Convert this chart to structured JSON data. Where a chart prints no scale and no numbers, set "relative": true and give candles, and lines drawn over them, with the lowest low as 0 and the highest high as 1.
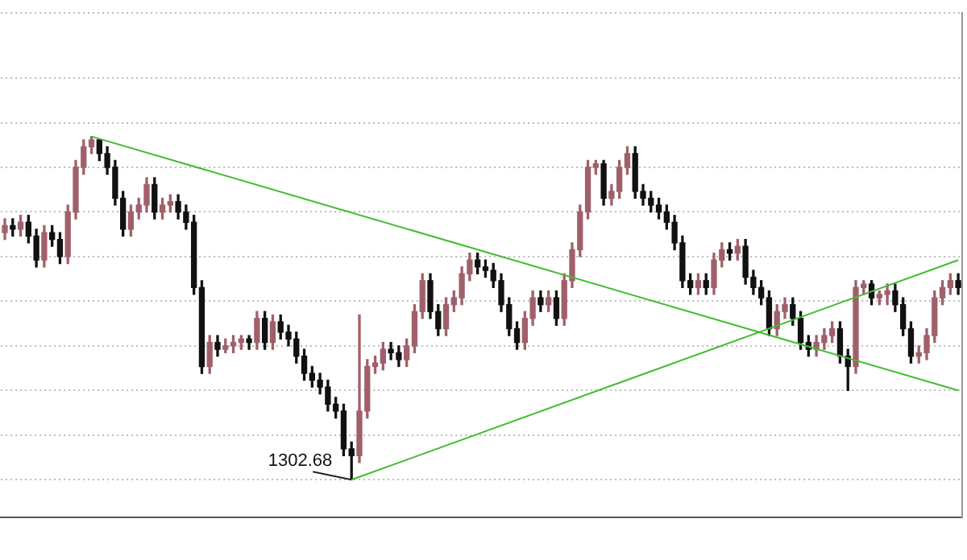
{
  "chart_data": {
    "type": "candlestick",
    "relative": true,
    "grid": "y",
    "legend": false,
    "categories": [
      null,
      null,
      null,
      null,
      null,
      null,
      null,
      null,
      null,
      null,
      null,
      null,
      null,
      null,
      null,
      null,
      null,
      null,
      null,
      null,
      null,
      null,
      null,
      null,
      null,
      null,
      null,
      null,
      null,
      null,
      null,
      null,
      null,
      null,
      null,
      null,
      null,
      null,
      null,
      null,
      null,
      null,
      null,
      null,
      null,
      null,
      null,
      null,
      null,
      null,
      null,
      null,
      null,
      null,
      null,
      null,
      null,
      null,
      null,
      null,
      null,
      null,
      null,
      null,
      null,
      null,
      null,
      null,
      null,
      null,
      null,
      null,
      null,
      null,
      null,
      null,
      null,
      null,
      null,
      null,
      null,
      null,
      null,
      null,
      null,
      null,
      null,
      null,
      null,
      null,
      null,
      null,
      null,
      null,
      null,
      null,
      null,
      null,
      null,
      null,
      null,
      null,
      null,
      null,
      null,
      null,
      null,
      null,
      null,
      null,
      null,
      null,
      null,
      null,
      null,
      null,
      null,
      null,
      null,
      null,
      null,
      null
    ],
    "ohlc": [
      [
        0.72,
        0.76,
        0.7,
        0.74
      ],
      [
        0.74,
        0.76,
        0.71,
        0.73
      ],
      [
        0.73,
        0.77,
        0.71,
        0.75
      ],
      [
        0.75,
        0.77,
        0.69,
        0.71
      ],
      [
        0.71,
        0.73,
        0.62,
        0.64
      ],
      [
        0.64,
        0.74,
        0.62,
        0.72
      ],
      [
        0.72,
        0.74,
        0.68,
        0.7
      ],
      [
        0.7,
        0.72,
        0.63,
        0.65
      ],
      [
        0.65,
        0.8,
        0.63,
        0.78
      ],
      [
        0.78,
        0.93,
        0.76,
        0.91
      ],
      [
        0.91,
        0.99,
        0.89,
        0.97
      ],
      [
        0.97,
        1.0,
        0.95,
        0.99
      ],
      [
        0.99,
        0.99,
        0.93,
        0.95
      ],
      [
        0.95,
        0.97,
        0.89,
        0.91
      ],
      [
        0.91,
        0.93,
        0.8,
        0.82
      ],
      [
        0.82,
        0.84,
        0.71,
        0.73
      ],
      [
        0.73,
        0.8,
        0.71,
        0.78
      ],
      [
        0.78,
        0.82,
        0.76,
        0.8
      ],
      [
        0.8,
        0.88,
        0.78,
        0.86
      ],
      [
        0.86,
        0.88,
        0.76,
        0.78
      ],
      [
        0.78,
        0.82,
        0.76,
        0.8
      ],
      [
        0.8,
        0.83,
        0.78,
        0.81
      ],
      [
        0.81,
        0.83,
        0.76,
        0.78
      ],
      [
        0.78,
        0.8,
        0.73,
        0.75
      ],
      [
        0.75,
        0.77,
        0.54,
        0.56
      ],
      [
        0.56,
        0.58,
        0.31,
        0.33
      ],
      [
        0.33,
        0.42,
        0.31,
        0.4
      ],
      [
        0.4,
        0.42,
        0.36,
        0.38
      ],
      [
        0.38,
        0.41,
        0.37,
        0.39
      ],
      [
        0.39,
        0.42,
        0.37,
        0.4
      ],
      [
        0.4,
        0.42,
        0.38,
        0.41
      ],
      [
        0.41,
        0.42,
        0.38,
        0.4
      ],
      [
        0.4,
        0.49,
        0.38,
        0.47
      ],
      [
        0.47,
        0.49,
        0.38,
        0.4
      ],
      [
        0.4,
        0.48,
        0.38,
        0.46
      ],
      [
        0.46,
        0.48,
        0.41,
        0.43
      ],
      [
        0.43,
        0.45,
        0.39,
        0.41
      ],
      [
        0.41,
        0.43,
        0.34,
        0.36
      ],
      [
        0.36,
        0.38,
        0.29,
        0.31
      ],
      [
        0.31,
        0.33,
        0.27,
        0.29
      ],
      [
        0.29,
        0.31,
        0.25,
        0.27
      ],
      [
        0.27,
        0.29,
        0.2,
        0.22
      ],
      [
        0.22,
        0.24,
        0.18,
        0.2
      ],
      [
        0.2,
        0.22,
        0.07,
        0.09
      ],
      [
        0.09,
        0.11,
        0.0,
        0.07
      ],
      [
        0.07,
        0.48,
        0.05,
        0.2
      ],
      [
        0.2,
        0.35,
        0.18,
        0.33
      ],
      [
        0.33,
        0.36,
        0.31,
        0.34
      ],
      [
        0.34,
        0.4,
        0.32,
        0.38
      ],
      [
        0.38,
        0.4,
        0.35,
        0.37
      ],
      [
        0.37,
        0.39,
        0.33,
        0.35
      ],
      [
        0.35,
        0.41,
        0.33,
        0.39
      ],
      [
        0.39,
        0.51,
        0.37,
        0.49
      ],
      [
        0.49,
        0.6,
        0.47,
        0.58
      ],
      [
        0.58,
        0.6,
        0.47,
        0.49
      ],
      [
        0.49,
        0.51,
        0.42,
        0.44
      ],
      [
        0.44,
        0.53,
        0.42,
        0.51
      ],
      [
        0.51,
        0.55,
        0.49,
        0.53
      ],
      [
        0.53,
        0.62,
        0.51,
        0.6
      ],
      [
        0.6,
        0.66,
        0.58,
        0.64
      ],
      [
        0.64,
        0.66,
        0.6,
        0.62
      ],
      [
        0.62,
        0.64,
        0.59,
        0.61
      ],
      [
        0.61,
        0.63,
        0.56,
        0.58
      ],
      [
        0.58,
        0.6,
        0.49,
        0.51
      ],
      [
        0.51,
        0.53,
        0.42,
        0.44
      ],
      [
        0.44,
        0.46,
        0.38,
        0.4
      ],
      [
        0.4,
        0.49,
        0.38,
        0.47
      ],
      [
        0.47,
        0.55,
        0.45,
        0.53
      ],
      [
        0.53,
        0.55,
        0.49,
        0.51
      ],
      [
        0.51,
        0.55,
        0.49,
        0.53
      ],
      [
        0.53,
        0.55,
        0.45,
        0.47
      ],
      [
        0.47,
        0.6,
        0.45,
        0.58
      ],
      [
        0.58,
        0.69,
        0.56,
        0.67
      ],
      [
        0.67,
        0.8,
        0.65,
        0.78
      ],
      [
        0.78,
        0.93,
        0.76,
        0.91
      ],
      [
        0.91,
        0.93,
        0.89,
        0.92
      ],
      [
        0.92,
        0.93,
        0.8,
        0.82
      ],
      [
        0.82,
        0.86,
        0.8,
        0.84
      ],
      [
        0.84,
        0.93,
        0.82,
        0.91
      ],
      [
        0.91,
        0.97,
        0.89,
        0.95
      ],
      [
        0.95,
        0.97,
        0.82,
        0.84
      ],
      [
        0.84,
        0.86,
        0.8,
        0.82
      ],
      [
        0.82,
        0.84,
        0.78,
        0.8
      ],
      [
        0.8,
        0.82,
        0.76,
        0.78
      ],
      [
        0.78,
        0.8,
        0.73,
        0.75
      ],
      [
        0.75,
        0.77,
        0.67,
        0.69
      ],
      [
        0.69,
        0.71,
        0.56,
        0.58
      ],
      [
        0.58,
        0.6,
        0.54,
        0.56
      ],
      [
        0.56,
        0.6,
        0.54,
        0.58
      ],
      [
        0.58,
        0.6,
        0.54,
        0.56
      ],
      [
        0.56,
        0.66,
        0.54,
        0.64
      ],
      [
        0.64,
        0.69,
        0.62,
        0.67
      ],
      [
        0.67,
        0.69,
        0.64,
        0.66
      ],
      [
        0.66,
        0.7,
        0.64,
        0.68
      ],
      [
        0.68,
        0.7,
        0.57,
        0.59
      ],
      [
        0.59,
        0.61,
        0.54,
        0.56
      ],
      [
        0.56,
        0.58,
        0.51,
        0.53
      ],
      [
        0.53,
        0.55,
        0.42,
        0.44
      ],
      [
        0.44,
        0.51,
        0.42,
        0.49
      ],
      [
        0.49,
        0.53,
        0.47,
        0.51
      ],
      [
        0.51,
        0.53,
        0.45,
        0.47
      ],
      [
        0.47,
        0.49,
        0.38,
        0.4
      ],
      [
        0.4,
        0.42,
        0.36,
        0.38
      ],
      [
        0.38,
        0.42,
        0.36,
        0.4
      ],
      [
        0.4,
        0.44,
        0.38,
        0.42
      ],
      [
        0.42,
        0.46,
        0.4,
        0.44
      ],
      [
        0.44,
        0.46,
        0.34,
        0.36
      ],
      [
        0.36,
        0.38,
        0.26,
        0.33
      ],
      [
        0.33,
        0.58,
        0.31,
        0.56
      ],
      [
        0.56,
        0.58,
        0.54,
        0.57
      ],
      [
        0.57,
        0.58,
        0.51,
        0.53
      ],
      [
        0.53,
        0.55,
        0.51,
        0.54
      ],
      [
        0.54,
        0.57,
        0.51,
        0.55
      ],
      [
        0.55,
        0.57,
        0.49,
        0.51
      ],
      [
        0.51,
        0.53,
        0.42,
        0.44
      ],
      [
        0.44,
        0.46,
        0.34,
        0.36
      ],
      [
        0.36,
        0.39,
        0.34,
        0.37
      ],
      [
        0.37,
        0.44,
        0.35,
        0.42
      ],
      [
        0.42,
        0.55,
        0.4,
        0.53
      ],
      [
        0.53,
        0.58,
        0.51,
        0.56
      ],
      [
        0.56,
        0.6,
        0.54,
        0.58
      ],
      [
        0.58,
        0.6,
        0.54,
        0.56
      ]
    ],
    "series": [
      {
        "type": "line",
        "color": "#44bb33",
        "values": [
          null,
          null,
          null,
          null,
          null,
          null,
          null,
          null,
          null,
          null,
          null,
          1.0,
          null,
          null,
          null,
          null,
          null,
          null,
          null,
          null,
          null,
          null,
          null,
          null,
          null,
          null,
          null,
          null,
          null,
          null,
          null,
          null,
          null,
          null,
          null,
          null,
          null,
          null,
          null,
          null,
          null,
          null,
          null,
          null,
          null,
          null,
          null,
          null,
          null,
          null,
          null,
          null,
          null,
          null,
          null,
          null,
          null,
          null,
          null,
          null,
          null,
          null,
          null,
          null,
          null,
          null,
          null,
          null,
          null,
          null,
          null,
          null,
          null,
          null,
          null,
          null,
          null,
          null,
          null,
          null,
          null,
          null,
          null,
          null,
          null,
          null,
          null,
          null,
          null,
          null,
          null,
          null,
          null,
          null,
          null,
          null,
          null,
          null,
          null,
          null,
          null,
          null,
          null,
          null,
          null,
          null,
          null,
          null,
          null,
          null,
          null,
          null,
          null,
          null,
          null,
          null,
          null,
          null,
          null,
          null,
          null,
          0.26
        ]
      },
      {
        "type": "line",
        "color": "#44bb33",
        "values": [
          null,
          null,
          null,
          null,
          null,
          null,
          null,
          null,
          null,
          null,
          null,
          null,
          null,
          null,
          null,
          null,
          null,
          null,
          null,
          null,
          null,
          null,
          null,
          null,
          null,
          null,
          null,
          null,
          null,
          null,
          null,
          null,
          null,
          null,
          null,
          null,
          null,
          null,
          null,
          null,
          null,
          null,
          null,
          null,
          0.0,
          null,
          null,
          null,
          null,
          null,
          null,
          null,
          null,
          null,
          null,
          null,
          null,
          null,
          null,
          null,
          null,
          null,
          null,
          null,
          null,
          null,
          null,
          null,
          null,
          null,
          null,
          null,
          null,
          null,
          null,
          null,
          null,
          null,
          null,
          null,
          null,
          null,
          null,
          null,
          null,
          null,
          null,
          null,
          null,
          null,
          null,
          null,
          null,
          null,
          null,
          null,
          null,
          null,
          null,
          null,
          null,
          null,
          null,
          null,
          null,
          null,
          null,
          null,
          null,
          null,
          null,
          null,
          null,
          null,
          null,
          null,
          null,
          null,
          null,
          null,
          null,
          0.64
        ]
      }
    ],
    "annotations": [
      "1302.68"
    ]
  }
}
